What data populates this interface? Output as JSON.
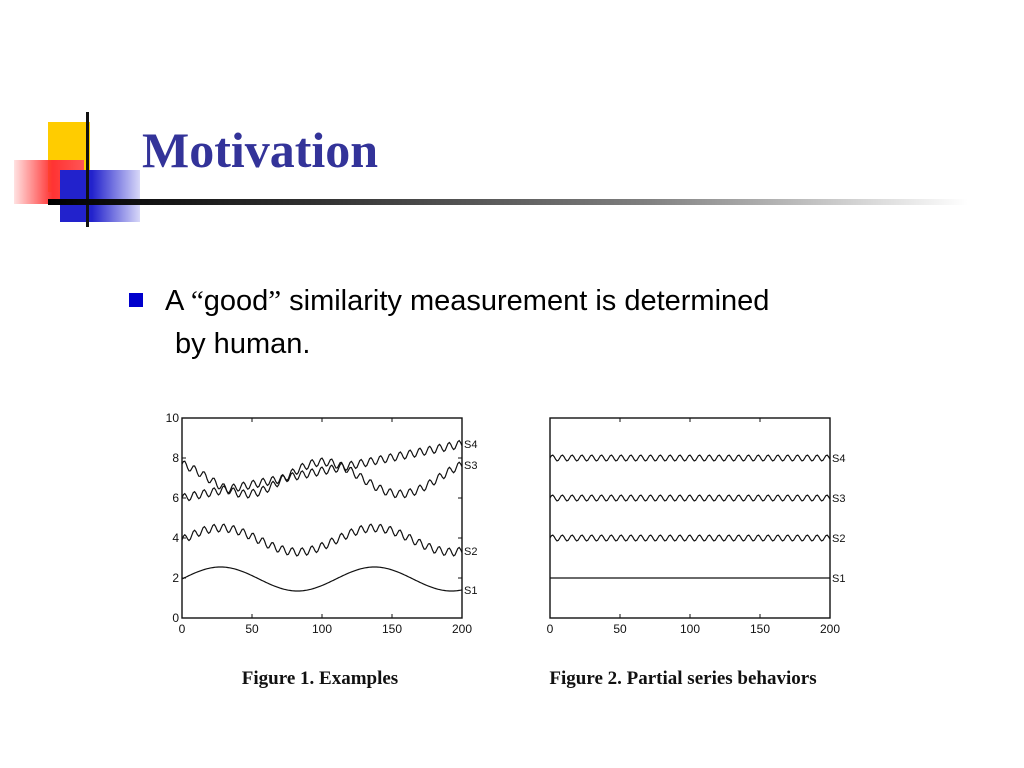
{
  "slide": {
    "title": "Motivation",
    "bullet": {
      "open_quote": "“",
      "close_quote": "”",
      "word": "good",
      "line1_before": "A ",
      "line1_after": " similarity measurement is determined",
      "line2": "by human."
    },
    "colors": {
      "title": "#333399",
      "bullet": "#0000cc"
    }
  },
  "chart_data": [
    {
      "type": "line",
      "caption": "Figure 1. Examples",
      "xlim": [
        0,
        200
      ],
      "ylim": [
        0,
        10
      ],
      "xticks": [
        0,
        50,
        100,
        150,
        200
      ],
      "yticks": [
        0,
        2,
        4,
        6,
        8,
        10
      ],
      "series": [
        {
          "name": "S4",
          "base": "linear",
          "from": 6.0,
          "to": 8.7,
          "wiggle": 0.2
        },
        {
          "name": "S3",
          "base": "sine",
          "mean": 7.0,
          "amp": 0.8,
          "phase_deg": 120,
          "wiggle": 0.2
        },
        {
          "name": "S2",
          "base": "sine",
          "mean": 3.9,
          "amp": 0.6,
          "phase_deg": 0,
          "wiggle": 0.2
        },
        {
          "name": "S1",
          "base": "sine",
          "mean": 1.95,
          "amp": 0.6,
          "phase_deg": 0,
          "wiggle": 0
        }
      ],
      "period": 110,
      "wiggle_period": 7
    },
    {
      "type": "line",
      "caption": "Figure 2. Partial series behaviors",
      "xlim": [
        0,
        200
      ],
      "ylim": [
        0,
        10
      ],
      "xticks": [
        0,
        50,
        100,
        150,
        200
      ],
      "series": [
        {
          "name": "S4",
          "base": "flat",
          "mean": 8,
          "wiggle": 0.15
        },
        {
          "name": "S3",
          "base": "flat",
          "mean": 6,
          "wiggle": 0.15
        },
        {
          "name": "S2",
          "base": "flat",
          "mean": 4,
          "wiggle": 0.15
        },
        {
          "name": "S1",
          "base": "flat",
          "mean": 2,
          "wiggle": 0
        }
      ],
      "wiggle_period": 7
    }
  ]
}
